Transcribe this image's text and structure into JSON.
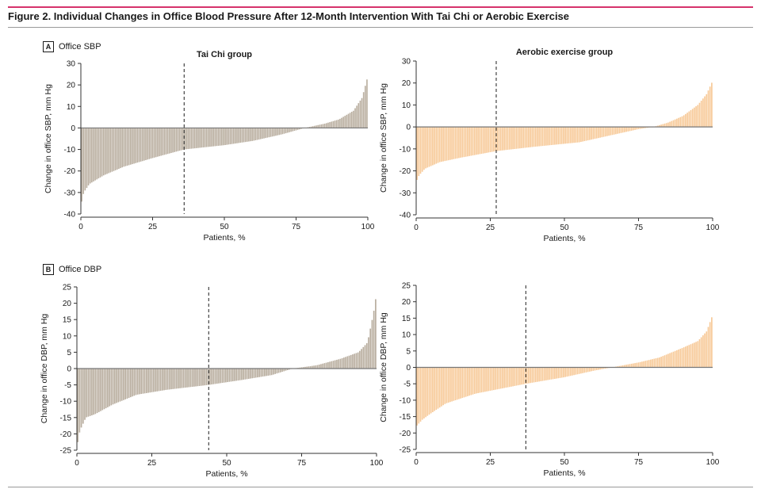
{
  "figure": {
    "title": "Figure 2. Individual Changes in Office Blood Pressure After 12-Month Intervention With Tai Chi or Aerobic Exercise",
    "accent_color": "#d6336c",
    "panels": [
      {
        "letter": "A",
        "label": "Office SBP"
      },
      {
        "letter": "B",
        "label": "Office DBP"
      }
    ]
  },
  "chart_data": [
    {
      "type": "bar",
      "panel": "A",
      "title": "Tai Chi group",
      "xlabel": "Patients, %",
      "ylabel": "Change in office SBP, mm Hg",
      "xlim": [
        0,
        100
      ],
      "ylim": [
        -40,
        30
      ],
      "xticks": [
        0,
        25,
        50,
        75,
        100
      ],
      "yticks": [
        30,
        20,
        10,
        0,
        -10,
        -20,
        -30,
        -40
      ],
      "color": "#b8ad9e",
      "reference_line_x": 36,
      "n_bars": 170,
      "profile_percentile": [
        0,
        1,
        3,
        8,
        15,
        25,
        36,
        50,
        60,
        70,
        78,
        85,
        90,
        95,
        98,
        100
      ],
      "profile_value": [
        -36,
        -30,
        -26,
        -22,
        -18,
        -14,
        -10,
        -8,
        -6,
        -3,
        0,
        2,
        4,
        8,
        14,
        24
      ]
    },
    {
      "type": "bar",
      "panel": "A",
      "title": "Aerobic exercise group",
      "xlabel": "Patients, %",
      "ylabel": "Change in office SBP, mm Hg",
      "xlim": [
        0,
        100
      ],
      "ylim": [
        -40,
        30
      ],
      "xticks": [
        0,
        25,
        50,
        75,
        100
      ],
      "yticks": [
        30,
        20,
        10,
        0,
        -10,
        -20,
        -30,
        -40
      ],
      "color": "#f7c997",
      "reference_line_x": 27,
      "n_bars": 170,
      "profile_percentile": [
        0,
        1,
        3,
        8,
        15,
        27,
        40,
        55,
        65,
        75,
        80,
        85,
        90,
        95,
        98,
        100
      ],
      "profile_value": [
        -25,
        -22,
        -19,
        -16,
        -14,
        -11,
        -9,
        -7,
        -4,
        -1,
        0,
        2,
        5,
        10,
        15,
        21
      ]
    },
    {
      "type": "bar",
      "panel": "B",
      "title": "",
      "xlabel": "Patients, %",
      "ylabel": "Change in office DBP, mm Hg",
      "xlim": [
        0,
        100
      ],
      "ylim": [
        -25,
        25
      ],
      "xticks": [
        0,
        25,
        50,
        75,
        100
      ],
      "yticks": [
        25,
        20,
        15,
        10,
        5,
        0,
        -5,
        -10,
        -15,
        -20,
        -25
      ],
      "color": "#b8ad9e",
      "reference_line_x": 44,
      "n_bars": 170,
      "profile_percentile": [
        0,
        1,
        3,
        6,
        12,
        20,
        30,
        44,
        55,
        65,
        72,
        80,
        88,
        94,
        97,
        99,
        100
      ],
      "profile_value": [
        -24,
        -19,
        -15,
        -14,
        -11,
        -8,
        -6.5,
        -5,
        -3.5,
        -2,
        0,
        1,
        3,
        5,
        8,
        17,
        23
      ]
    },
    {
      "type": "bar",
      "panel": "B",
      "title": "",
      "xlabel": "Patients, %",
      "ylabel": "Change in office DBP, mm Hg",
      "xlim": [
        0,
        100
      ],
      "ylim": [
        -25,
        25
      ],
      "xticks": [
        0,
        25,
        50,
        75,
        100
      ],
      "yticks": [
        25,
        20,
        15,
        10,
        5,
        0,
        -5,
        -10,
        -15,
        -20,
        -25
      ],
      "color": "#f7c997",
      "reference_line_x": 37,
      "n_bars": 170,
      "profile_percentile": [
        0,
        2,
        5,
        10,
        20,
        37,
        50,
        60,
        66,
        75,
        82,
        90,
        95,
        98,
        100
      ],
      "profile_value": [
        -18,
        -16,
        -14,
        -11,
        -8,
        -5,
        -3,
        -1,
        0,
        1.5,
        3,
        6,
        8,
        11,
        16
      ]
    }
  ]
}
